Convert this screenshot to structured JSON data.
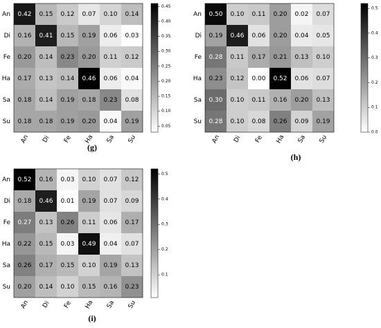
{
  "chart_data": [
    {
      "type": "heatmap",
      "label": "(g)",
      "cmap": "gray_r",
      "x_categories": [
        "An",
        "Di",
        "Fe",
        "Ha",
        "Sa",
        "Su"
      ],
      "y_categories": [
        "An",
        "Di",
        "Fe",
        "Ha",
        "Sa",
        "Su"
      ],
      "values": [
        [
          0.42,
          0.15,
          0.12,
          0.07,
          0.1,
          0.14
        ],
        [
          0.16,
          0.41,
          0.15,
          0.19,
          0.06,
          0.03
        ],
        [
          0.2,
          0.14,
          0.23,
          0.2,
          0.11,
          0.12
        ],
        [
          0.17,
          0.13,
          0.14,
          0.46,
          0.06,
          0.04
        ],
        [
          0.18,
          0.14,
          0.19,
          0.18,
          0.23,
          0.08
        ],
        [
          0.18,
          0.18,
          0.19,
          0.2,
          0.04,
          0.19
        ]
      ],
      "value_labels": [
        [
          "0.42",
          "0.15",
          "0.12",
          "0.07",
          "0.10",
          "0.14"
        ],
        [
          "0.16",
          "0.41",
          "0.15",
          "0.19",
          "0.06",
          "0.03"
        ],
        [
          "0.20",
          "0.14",
          "0.23",
          "0.20",
          "0.11",
          "0.12"
        ],
        [
          "0.17",
          "0.13",
          "0.14",
          "0.46",
          "0.06",
          "0.04"
        ],
        [
          "0.18",
          "0.14",
          "0.19",
          "0.18",
          "0.23",
          "0.08"
        ],
        [
          "0.18",
          "0.18",
          "0.19",
          "0.20",
          "0.04",
          "0.19"
        ]
      ],
      "zlim": [
        0.03,
        0.46
      ],
      "zticks": [
        0.05,
        {
          "value": 0.1,
          "label": "0.10"
        },
        0.15,
        {
          "value": 0.2,
          "label": "0.20"
        },
        0.25,
        {
          "value": 0.3,
          "label": "0.30"
        },
        0.35,
        {
          "value": 0.4,
          "label": "0.40"
        },
        0.45
      ]
    },
    {
      "type": "heatmap",
      "label": "(h)",
      "cmap": "gray_r",
      "x_categories": [
        "An",
        "Di",
        "Fe",
        "Ha",
        "Sa",
        "Su"
      ],
      "y_categories": [
        "An",
        "Di",
        "Fe",
        "Ha",
        "Sa",
        "Su"
      ],
      "values": [
        [
          0.5,
          0.1,
          0.11,
          0.2,
          0.02,
          0.07
        ],
        [
          0.19,
          0.46,
          0.06,
          0.2,
          0.04,
          0.05
        ],
        [
          0.28,
          0.11,
          0.17,
          0.21,
          0.13,
          0.1
        ],
        [
          0.23,
          0.12,
          0.0,
          0.52,
          0.06,
          0.07
        ],
        [
          0.3,
          0.1,
          0.11,
          0.16,
          0.2,
          0.13
        ],
        [
          0.28,
          0.1,
          0.08,
          0.26,
          0.09,
          0.19
        ]
      ],
      "value_labels": [
        [
          "0.50",
          "0.10",
          "0.11",
          "0.20",
          "0.02",
          "0.07"
        ],
        [
          "0.19",
          "0.46",
          "0.06",
          "0.20",
          "0.04",
          "0.05"
        ],
        [
          "0.28",
          "0.11",
          "0.17",
          "0.21",
          "0.13",
          "0.10"
        ],
        [
          "0.23",
          "0.12",
          "0.00",
          "0.52",
          "0.06",
          "0.07"
        ],
        [
          "0.30",
          "0.10",
          "0.11",
          "0.16",
          "0.20",
          "0.13"
        ],
        [
          "0.28",
          "0.10",
          "0.08",
          "0.26",
          "0.09",
          "0.19"
        ]
      ],
      "zlim": [
        0,
        0.52
      ],
      "zticks": [
        {
          "value": 0,
          "label": "0.0"
        },
        0.1,
        0.2,
        0.3,
        0.4,
        0.5
      ]
    },
    {
      "type": "heatmap",
      "label": "(i)",
      "cmap": "gray_r",
      "x_categories": [
        "An",
        "Di",
        "Fe",
        "Ha",
        "Sa",
        "Su"
      ],
      "y_categories": [
        "An",
        "Di",
        "Fe",
        "Ha",
        "Sa",
        "Su"
      ],
      "values": [
        [
          0.52,
          0.16,
          0.03,
          0.1,
          0.07,
          0.12
        ],
        [
          0.18,
          0.46,
          0.01,
          0.19,
          0.07,
          0.09
        ],
        [
          0.27,
          0.13,
          0.26,
          0.11,
          0.06,
          0.17
        ],
        [
          0.22,
          0.15,
          0.03,
          0.49,
          0.04,
          0.07
        ],
        [
          0.26,
          0.17,
          0.15,
          0.1,
          0.19,
          0.13
        ],
        [
          0.2,
          0.14,
          0.1,
          0.15,
          0.16,
          0.23
        ]
      ],
      "value_labels": [
        [
          "0.52",
          "0.16",
          "0.03",
          "0.10",
          "0.07",
          "0.12"
        ],
        [
          "0.18",
          "0.46",
          "0.01",
          "0.19",
          "0.07",
          "0.09"
        ],
        [
          "0.27",
          "0.13",
          "0.26",
          "0.11",
          "0.06",
          "0.17"
        ],
        [
          "0.22",
          "0.15",
          "0.03",
          "0.49",
          "0.04",
          "0.07"
        ],
        [
          "0.26",
          "0.17",
          "0.15",
          "0.10",
          "0.19",
          "0.13"
        ],
        [
          "0.20",
          "0.14",
          "0.10",
          "0.15",
          "0.16",
          "0.23"
        ]
      ],
      "zlim": [
        0.01,
        0.52
      ],
      "zticks": [
        0.1,
        0.2,
        0.3,
        0.4,
        0.5
      ]
    }
  ]
}
